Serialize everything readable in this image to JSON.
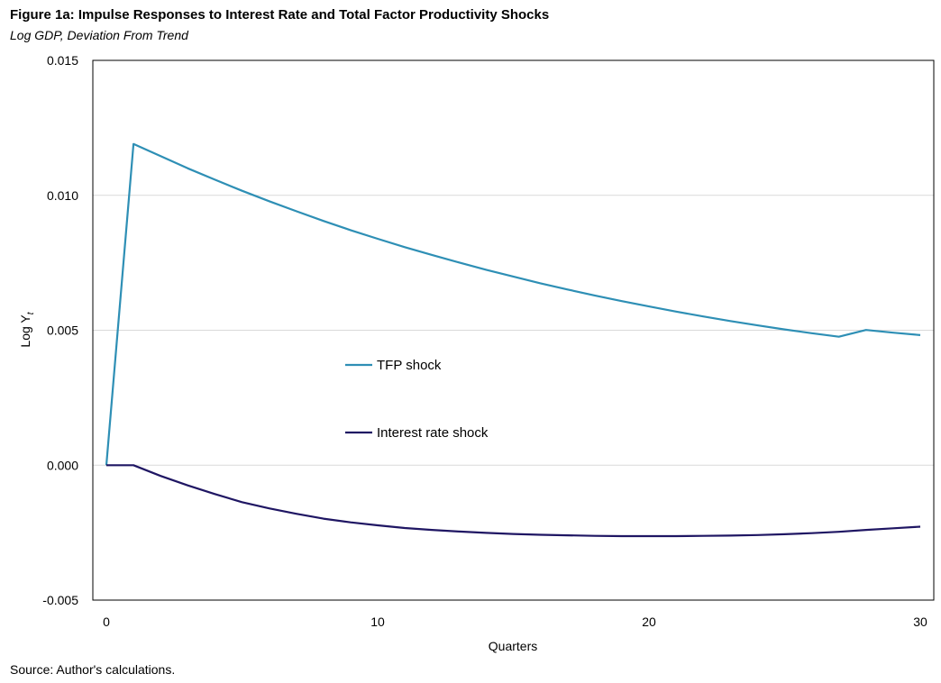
{
  "header": {
    "title": "Figure 1a: Impulse Responses to Interest Rate and Total Factor Productivity Shocks",
    "subtitle": "Log GDP, Deviation From Trend"
  },
  "footer": {
    "source": "Source: Author's calculations."
  },
  "chart_data": {
    "type": "line",
    "title": "Figure 1a: Impulse Responses to Interest Rate and Total Factor Productivity Shocks",
    "subtitle": "Log GDP, Deviation From Trend",
    "xlabel": "Quarters",
    "ylabel": "Log Y",
    "ylabel_subscript": "t",
    "xlim": [
      0,
      30
    ],
    "ylim": [
      -0.005,
      0.015
    ],
    "x_ticks": [
      0,
      10,
      20,
      30
    ],
    "x_tick_labels": [
      "0",
      "10",
      "20",
      "30"
    ],
    "y_ticks": [
      -0.005,
      0,
      0.005,
      0.01,
      0.015
    ],
    "y_tick_labels": [
      "-0.005",
      "0.000",
      "0.005",
      "0.010",
      "0.015"
    ],
    "grid": "horizontal",
    "legend": "inside-center",
    "x": [
      0,
      1,
      2,
      3,
      4,
      5,
      6,
      7,
      8,
      9,
      10,
      11,
      12,
      13,
      14,
      15,
      16,
      17,
      18,
      19,
      20,
      21,
      22,
      23,
      24,
      25,
      26,
      27,
      28,
      29,
      30
    ],
    "series": [
      {
        "name": "TFP shock",
        "color": "#2e8fb5",
        "values": [
          0,
          0.0119,
          0.01145,
          0.011,
          0.01058,
          0.01017,
          0.00978,
          0.00941,
          0.00905,
          0.00871,
          0.00839,
          0.00808,
          0.00779,
          0.00751,
          0.00724,
          0.00699,
          0.00674,
          0.00651,
          0.00629,
          0.00608,
          0.00588,
          0.00569,
          0.00551,
          0.00534,
          0.00518,
          0.00503,
          0.00489,
          0.00476,
          0.00501,
          0.00491,
          0.00482
        ]
      },
      {
        "name": "Interest rate shock",
        "color": "#1f1663",
        "values": [
          0,
          0,
          -0.0004,
          -0.00075,
          -0.00107,
          -0.00137,
          -0.0016,
          -0.0018,
          -0.00198,
          -0.00212,
          -0.00223,
          -0.00233,
          -0.0024,
          -0.00246,
          -0.00251,
          -0.00255,
          -0.00258,
          -0.0026,
          -0.00262,
          -0.00263,
          -0.00263,
          -0.00263,
          -0.00262,
          -0.00261,
          -0.00259,
          -0.00256,
          -0.00252,
          -0.00247,
          -0.0024,
          -0.00234,
          -0.00228
        ]
      }
    ]
  }
}
